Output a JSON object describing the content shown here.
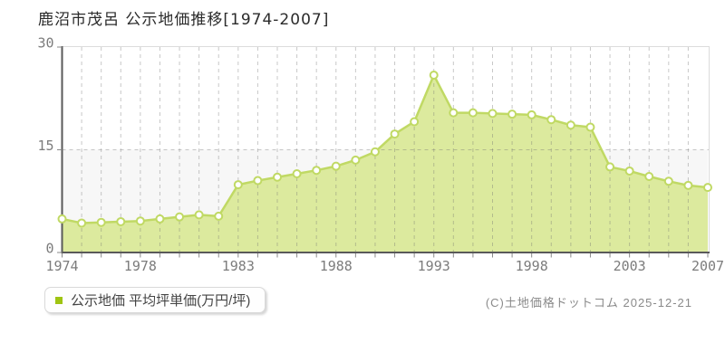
{
  "page": {
    "title": "鹿沼市茂呂 公示地価推移[1974-2007]",
    "copyright": "(C)土地価格ドットコム 2025-12-21"
  },
  "legend": {
    "label": "公示地価 平均坪単価(万円/坪)",
    "marker_color": "#9fc412"
  },
  "chart_data": {
    "type": "area",
    "title": "鹿沼市茂呂 公示地価推移[1974-2007]",
    "xlabel": "",
    "ylabel": "平均坪単価(万円/坪)",
    "x": [
      1974,
      1975,
      1976,
      1977,
      1978,
      1979,
      1980,
      1981,
      1982,
      1983,
      1984,
      1985,
      1986,
      1987,
      1988,
      1989,
      1990,
      1991,
      1992,
      1993,
      1994,
      1995,
      1996,
      1997,
      1998,
      1999,
      2000,
      2001,
      2002,
      2003,
      2004,
      2005,
      2006,
      2007
    ],
    "series": [
      {
        "name": "公示地価 平均坪単価(万円/坪)",
        "values": [
          4.9,
          4.3,
          4.4,
          4.5,
          4.6,
          4.9,
          5.2,
          5.5,
          5.3,
          9.9,
          10.5,
          11.0,
          11.5,
          12.0,
          12.6,
          13.5,
          14.7,
          17.3,
          19.1,
          25.9,
          20.4,
          20.4,
          20.3,
          20.2,
          20.1,
          19.4,
          18.6,
          18.3,
          12.5,
          11.9,
          11.1,
          10.4,
          9.8,
          9.5
        ]
      }
    ],
    "ylim": [
      0,
      30
    ],
    "y_ticks": [
      0,
      15,
      30
    ],
    "y_tick_labels": [
      "0",
      "15",
      "30"
    ],
    "x_tick_labels": [
      1974,
      1978,
      1983,
      1988,
      1993,
      1998,
      2003,
      2007
    ],
    "grid": true,
    "legend_position": "bottom-left",
    "colors": {
      "line": "#c0d964",
      "fill": "#dcea9e",
      "marker_fill": "#ffffff",
      "lower_band": "#f7f7f7",
      "border": "#dcdcdc",
      "axis": "#5a5a5a",
      "tick_label": "#7c7c7c"
    }
  }
}
